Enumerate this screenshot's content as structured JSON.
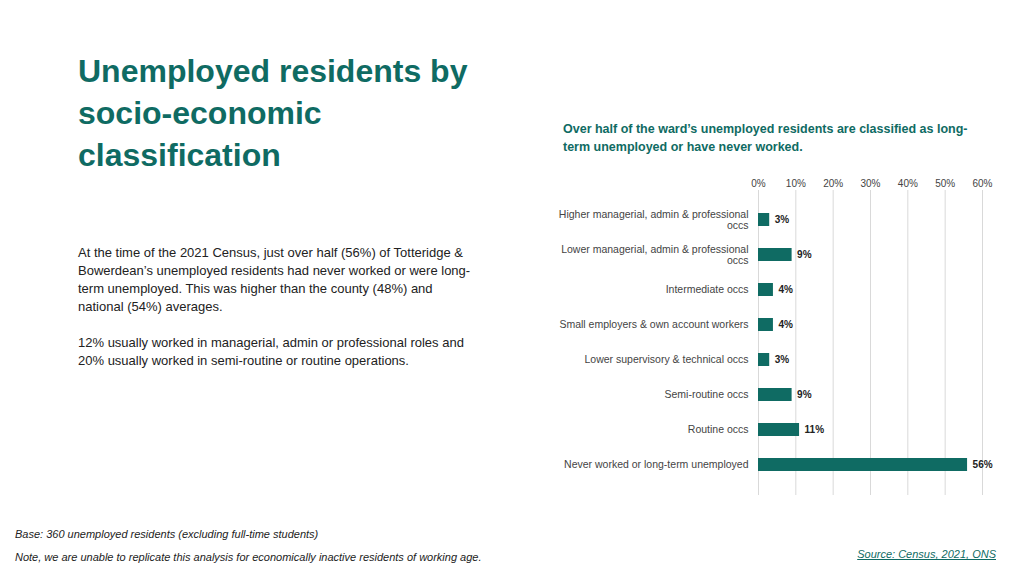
{
  "chart_data": {
    "type": "bar",
    "orientation": "horizontal",
    "title": "Unemployed residents by socio-economic classification",
    "subtitle": "Over half of the ward’s unemployed residents are classified as long-term unemployed or have never worked.",
    "categories": [
      "Higher managerial, admin & professional occs",
      "Lower managerial, admin & professional occs",
      "Intermediate occs",
      "Small employers & own account workers",
      "Lower supervisory & technical occs",
      "Semi-routine occs",
      "Routine occs",
      "Never worked or long-term unemployed"
    ],
    "values": [
      3,
      9,
      4,
      4,
      3,
      9,
      11,
      56
    ],
    "value_labels": [
      "3%",
      "9%",
      "4%",
      "4%",
      "3%",
      "9%",
      "11%",
      "56%"
    ],
    "data_labels": true,
    "color": "#0f6b63",
    "xlim": [
      0,
      60
    ],
    "xticks": [
      {
        "value": 0,
        "label": "0%"
      },
      {
        "value": 10,
        "label": "10%"
      },
      {
        "value": 20,
        "label": "20%"
      },
      {
        "value": 30,
        "label": "30%"
      },
      {
        "value": 40,
        "label": "40%"
      },
      {
        "value": 50,
        "label": "50%"
      },
      {
        "value": 60,
        "label": "60%"
      }
    ],
    "grid": true
  },
  "text": {
    "paragraphs": [
      "At the time of the 2021 Census, just over half (56%) of Totteridge & Bowerdean’s unemployed residents had never worked or were long-term unemployed. This was higher than the county (48%) and national (54%) averages.",
      "12% usually worked in managerial, admin or professional roles and 20% usually worked in semi-routine or routine operations."
    ],
    "base": "Base: 360 unemployed residents (excluding full-time students)",
    "note": "Note, we are unable to replicate this analysis for economically inactive residents of working age.",
    "source": "Source: Census, 2021, ONS"
  }
}
